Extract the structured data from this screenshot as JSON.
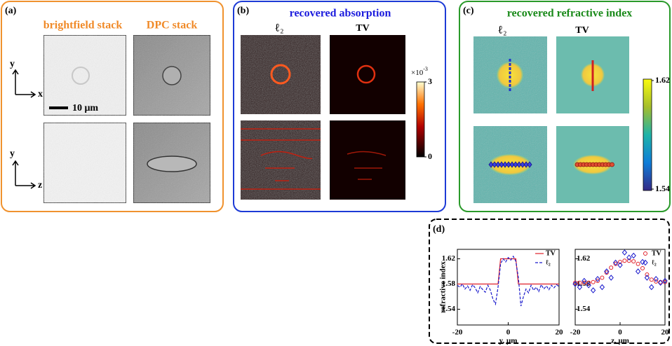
{
  "panel_a": {
    "label": "(a)",
    "columns": [
      "brightfield stack",
      "DPC stack"
    ],
    "rows": [
      {
        "axis_v": "y",
        "axis_h": "x"
      },
      {
        "axis_v": "y",
        "axis_h": "z"
      }
    ],
    "scale_bar": "10 μm"
  },
  "panel_b": {
    "label": "(b)",
    "title": "recovered absorption",
    "columns": [
      "ℓ₂",
      "TV"
    ],
    "colorbar": {
      "lim": [
        0,
        3
      ],
      "ticks": [
        0,
        3
      ],
      "multiplier": "×10",
      "exponent": "-3"
    }
  },
  "panel_c": {
    "label": "(c)",
    "title": "recovered refractive index",
    "columns": [
      "ℓ₂",
      "TV"
    ],
    "colorbar": {
      "lim": [
        1.54,
        1.62
      ],
      "ticks": [
        1.54,
        1.62
      ]
    }
  },
  "panel_d": {
    "label": "(d)"
  },
  "chart_data": [
    {
      "type": "line",
      "xlabel": "y, μm",
      "ylabel": "refractive index",
      "xlim": [
        -20,
        20
      ],
      "xticks": [
        -20,
        0,
        20
      ],
      "ylim": [
        1.515,
        1.635
      ],
      "yticks": [
        1.54,
        1.58,
        1.62
      ],
      "x": [
        -20,
        -19,
        -18,
        -17,
        -16,
        -15,
        -14,
        -13,
        -12,
        -11,
        -10,
        -9,
        -8,
        -7,
        -6,
        -5,
        -4,
        -3,
        -2,
        -1,
        0,
        1,
        2,
        3,
        4,
        5,
        6,
        7,
        8,
        9,
        10,
        11,
        12,
        13,
        14,
        15,
        16,
        17,
        18,
        19,
        20
      ],
      "series": [
        {
          "name": "TV",
          "color": "#e0202a",
          "style": "line",
          "values": [
            1.58,
            1.58,
            1.58,
            1.58,
            1.58,
            1.58,
            1.58,
            1.58,
            1.58,
            1.58,
            1.58,
            1.58,
            1.58,
            1.58,
            1.58,
            1.58,
            1.58,
            1.62,
            1.62,
            1.62,
            1.62,
            1.62,
            1.62,
            1.62,
            1.58,
            1.58,
            1.58,
            1.58,
            1.58,
            1.58,
            1.58,
            1.58,
            1.58,
            1.58,
            1.58,
            1.58,
            1.58,
            1.58,
            1.58,
            1.58,
            1.58
          ]
        },
        {
          "name": "ℓ₂",
          "color": "#1a1acc",
          "style": "dashed",
          "values": [
            1.578,
            1.575,
            1.58,
            1.572,
            1.577,
            1.57,
            1.579,
            1.574,
            1.566,
            1.576,
            1.571,
            1.567,
            1.578,
            1.57,
            1.556,
            1.548,
            1.575,
            1.612,
            1.62,
            1.615,
            1.622,
            1.618,
            1.624,
            1.616,
            1.59,
            1.545,
            1.56,
            1.572,
            1.566,
            1.578,
            1.57,
            1.575,
            1.568,
            1.579,
            1.572,
            1.577,
            1.571,
            1.578,
            1.574,
            1.579,
            1.576
          ]
        }
      ]
    },
    {
      "type": "line",
      "xlabel": "z, μm",
      "xlim": [
        -20,
        20
      ],
      "xticks": [
        -20,
        0,
        20
      ],
      "ylim": [
        1.515,
        1.635
      ],
      "yticks": [
        1.54,
        1.58,
        1.62
      ],
      "x": [
        -20,
        -18,
        -16,
        -14,
        -12,
        -10,
        -8,
        -6,
        -4,
        -2,
        0,
        2,
        4,
        6,
        8,
        10,
        12,
        14,
        16,
        18,
        20
      ],
      "series": [
        {
          "name": "TV",
          "color": "#e0202a",
          "style": "circle",
          "values": [
            1.582,
            1.582,
            1.582,
            1.582,
            1.583,
            1.585,
            1.59,
            1.598,
            1.606,
            1.612,
            1.615,
            1.617,
            1.617,
            1.616,
            1.612,
            1.605,
            1.595,
            1.587,
            1.584,
            1.583,
            1.583
          ]
        },
        {
          "name": "ℓ₂",
          "color": "#1a1acc",
          "style": "diamond",
          "values": [
            1.58,
            1.575,
            1.585,
            1.578,
            1.57,
            1.588,
            1.575,
            1.6,
            1.59,
            1.614,
            1.61,
            1.63,
            1.622,
            1.625,
            1.6,
            1.615,
            1.59,
            1.575,
            1.588,
            1.582,
            1.585
          ]
        }
      ]
    }
  ]
}
